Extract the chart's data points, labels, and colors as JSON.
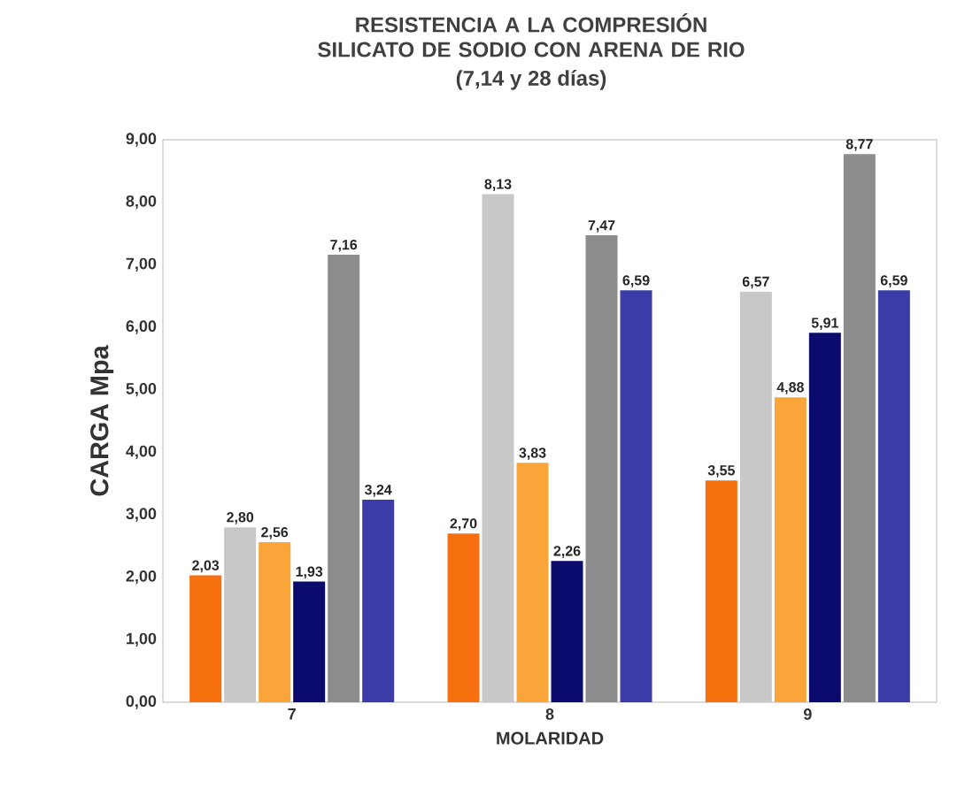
{
  "chart_data": {
    "type": "bar",
    "title": "RESISTENCIA A LA COMPRESIÓN SILICATO DE SODIO CON ARENA DE RIO",
    "subtitle": "(7,14 y 28 días)",
    "xlabel": "MOLARIDAD",
    "ylabel": "CARGA Mpa",
    "categories": [
      "7",
      "8",
      "9"
    ],
    "series": [
      {
        "color": "#f7700f",
        "values": [
          2.03,
          2.7,
          3.55
        ],
        "value_labels": [
          "2,03",
          "2,70",
          "3,55"
        ]
      },
      {
        "color": "#c8c8c8",
        "values": [
          2.8,
          8.13,
          6.57
        ],
        "value_labels": [
          "2,80",
          "8,13",
          "6,57"
        ]
      },
      {
        "color": "#f9a53a",
        "values": [
          2.56,
          3.83,
          4.88
        ],
        "value_labels": [
          "2,56",
          "3,83",
          "4,88"
        ]
      },
      {
        "color": "#0b0b6e",
        "values": [
          1.93,
          2.26,
          5.91
        ],
        "value_labels": [
          "1,93",
          "2,26",
          "5,91"
        ]
      },
      {
        "color": "#8c8c8c",
        "values": [
          7.16,
          7.47,
          8.77
        ],
        "value_labels": [
          "7,16",
          "7,47",
          "8,77"
        ]
      },
      {
        "color": "#3c3ca8",
        "values": [
          3.24,
          6.59,
          6.59
        ],
        "value_labels": [
          "3,24",
          "6,59",
          "6,59"
        ]
      }
    ],
    "ylim": [
      0,
      9
    ],
    "yticks": [
      {
        "value": 0,
        "label": "0,00"
      },
      {
        "value": 1,
        "label": "1,00"
      },
      {
        "value": 2,
        "label": "2,00"
      },
      {
        "value": 3,
        "label": "3,00"
      },
      {
        "value": 4,
        "label": "4,00"
      },
      {
        "value": 5,
        "label": "5,00"
      },
      {
        "value": 6,
        "label": "6,00"
      },
      {
        "value": 7,
        "label": "7,00"
      },
      {
        "value": 8,
        "label": "8,00"
      },
      {
        "value": 9,
        "label": "9,00"
      }
    ],
    "grid": false
  }
}
